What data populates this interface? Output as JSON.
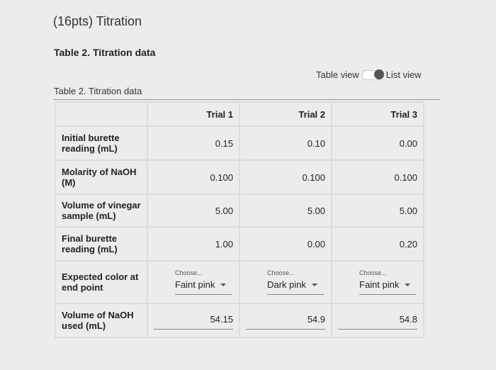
{
  "header": {
    "title": "(16pts) Titration"
  },
  "section_title": "Table 2. Titration data",
  "view_toggle": {
    "left": "Table view",
    "right": "List view"
  },
  "table": {
    "caption": "Table 2. Titration data",
    "columns": [
      "Trial 1",
      "Trial 2",
      "Trial 3"
    ],
    "rows": [
      {
        "label": "Initial burette reading (mL)",
        "cells": [
          "0.15",
          "0.10",
          "0.00"
        ]
      },
      {
        "label": "Molarity of NaOH (M)",
        "cells": [
          "0.100",
          "0.100",
          "0.100"
        ]
      },
      {
        "label": "Volume of vinegar sample (mL)",
        "cells": [
          "5.00",
          "5.00",
          "5.00"
        ]
      },
      {
        "label": "Final burette reading (mL)",
        "cells": [
          "1.00",
          "0.00",
          "0.20"
        ]
      },
      {
        "label": "Expected color at end point",
        "cells": [
          {
            "placeholder": "Choose...",
            "value": "Faint pink"
          },
          {
            "placeholder": "Choose...",
            "value": "Dark pink"
          },
          {
            "placeholder": "Choose...",
            "value": "Faint pink"
          }
        ]
      },
      {
        "label": "Volume of NaOH used (mL)",
        "cells": [
          {
            "input": "54.15"
          },
          {
            "input": "54.9"
          },
          {
            "input": "54.8"
          }
        ]
      }
    ]
  }
}
